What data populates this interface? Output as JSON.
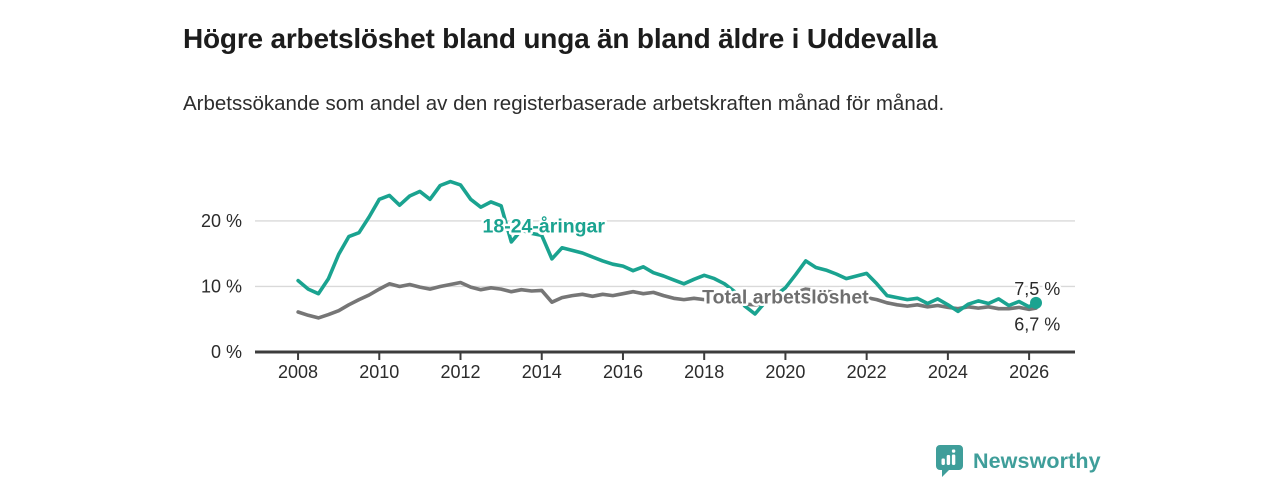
{
  "footer": {
    "brand": "Newsworthy",
    "logo_icon": "bar-chart-speech-bubble-icon"
  },
  "colors": {
    "young": "#1aa390",
    "total": "#767676",
    "total_label": "#6f6f6f",
    "text": "#2a2a2a",
    "tick_text": "#2b2b2b",
    "grid": "#d9d9d9",
    "axis": "#3c3c3c",
    "brand": "#3f9e9a"
  },
  "chart_data": {
    "type": "line",
    "title": "Högre arbetslöshet bland unga än bland äldre i Uddevalla",
    "subtitle": "Arbetssökande som andel av den registerbaserade arbetskraften månad för månad.",
    "xlabel": "",
    "ylabel": "",
    "xlim": [
      2006.94,
      2027.13
    ],
    "ylim": [
      0,
      29.6
    ],
    "grid": "horizontal-only",
    "legend_position": "inline-labels",
    "x_ticks": [
      2008,
      2010,
      2012,
      2014,
      2016,
      2018,
      2020,
      2022,
      2024,
      2026
    ],
    "y_ticks": [
      {
        "value": 0,
        "label": "0 %"
      },
      {
        "value": 10,
        "label": "10 %"
      },
      {
        "value": 20,
        "label": "20 %"
      }
    ],
    "series": [
      {
        "name": "Total arbetslöshet",
        "slug": "total-arbetsloshet",
        "color_key": "total",
        "line_width": 3.6,
        "end_dot": false,
        "end_value_label": "6,7 %",
        "points": [
          [
            2008.0,
            6.1
          ],
          [
            2008.25,
            5.6
          ],
          [
            2008.5,
            5.2
          ],
          [
            2008.75,
            5.7
          ],
          [
            2009.0,
            6.3
          ],
          [
            2009.25,
            7.2
          ],
          [
            2009.5,
            8.0
          ],
          [
            2009.75,
            8.7
          ],
          [
            2010.0,
            9.6
          ],
          [
            2010.25,
            10.4
          ],
          [
            2010.5,
            10.0
          ],
          [
            2010.75,
            10.3
          ],
          [
            2011.0,
            9.9
          ],
          [
            2011.25,
            9.6
          ],
          [
            2011.5,
            10.0
          ],
          [
            2011.75,
            10.3
          ],
          [
            2012.0,
            10.6
          ],
          [
            2012.25,
            9.9
          ],
          [
            2012.5,
            9.5
          ],
          [
            2012.75,
            9.8
          ],
          [
            2013.0,
            9.6
          ],
          [
            2013.25,
            9.2
          ],
          [
            2013.5,
            9.5
          ],
          [
            2013.75,
            9.3
          ],
          [
            2014.0,
            9.4
          ],
          [
            2014.25,
            7.6
          ],
          [
            2014.5,
            8.3
          ],
          [
            2014.75,
            8.6
          ],
          [
            2015.0,
            8.8
          ],
          [
            2015.25,
            8.5
          ],
          [
            2015.5,
            8.8
          ],
          [
            2015.75,
            8.6
          ],
          [
            2016.0,
            8.9
          ],
          [
            2016.25,
            9.2
          ],
          [
            2016.5,
            8.9
          ],
          [
            2016.75,
            9.1
          ],
          [
            2017.0,
            8.6
          ],
          [
            2017.25,
            8.2
          ],
          [
            2017.5,
            8.0
          ],
          [
            2017.75,
            8.2
          ],
          [
            2018.0,
            8.0
          ],
          [
            2018.25,
            7.8
          ],
          [
            2018.5,
            7.6
          ],
          [
            2018.75,
            7.5
          ],
          [
            2019.0,
            7.3
          ],
          [
            2019.25,
            7.2
          ],
          [
            2019.5,
            7.4
          ],
          [
            2019.75,
            7.7
          ],
          [
            2020.0,
            8.1
          ],
          [
            2020.25,
            9.1
          ],
          [
            2020.5,
            9.6
          ],
          [
            2020.75,
            9.4
          ],
          [
            2021.0,
            9.3
          ],
          [
            2021.25,
            9.0
          ],
          [
            2021.5,
            8.7
          ],
          [
            2021.75,
            8.5
          ],
          [
            2022.0,
            8.3
          ],
          [
            2022.25,
            8.0
          ],
          [
            2022.5,
            7.5
          ],
          [
            2022.75,
            7.2
          ],
          [
            2023.0,
            7.0
          ],
          [
            2023.25,
            7.2
          ],
          [
            2023.5,
            6.9
          ],
          [
            2023.75,
            7.1
          ],
          [
            2024.0,
            6.8
          ],
          [
            2024.25,
            6.6
          ],
          [
            2024.5,
            6.9
          ],
          [
            2024.75,
            6.7
          ],
          [
            2025.0,
            6.9
          ],
          [
            2025.25,
            6.6
          ],
          [
            2025.5,
            6.6
          ],
          [
            2025.75,
            6.8
          ],
          [
            2026.0,
            6.5
          ],
          [
            2026.17,
            6.7
          ]
        ]
      },
      {
        "name": "18-24-åringar",
        "slug": "18-24-aringar",
        "color_key": "young",
        "line_width": 3.6,
        "end_dot": true,
        "end_value_label": "7,5 %",
        "points": [
          [
            2008.0,
            10.9
          ],
          [
            2008.25,
            9.6
          ],
          [
            2008.5,
            8.9
          ],
          [
            2008.75,
            11.2
          ],
          [
            2009.0,
            14.9
          ],
          [
            2009.25,
            17.6
          ],
          [
            2009.5,
            18.2
          ],
          [
            2009.75,
            20.6
          ],
          [
            2010.0,
            23.3
          ],
          [
            2010.25,
            23.9
          ],
          [
            2010.5,
            22.4
          ],
          [
            2010.75,
            23.8
          ],
          [
            2011.0,
            24.5
          ],
          [
            2011.25,
            23.3
          ],
          [
            2011.5,
            25.4
          ],
          [
            2011.75,
            26.0
          ],
          [
            2012.0,
            25.5
          ],
          [
            2012.25,
            23.3
          ],
          [
            2012.5,
            22.1
          ],
          [
            2012.75,
            22.9
          ],
          [
            2013.0,
            22.3
          ],
          [
            2013.25,
            16.8
          ],
          [
            2013.5,
            18.6
          ],
          [
            2013.75,
            18.1
          ],
          [
            2014.0,
            17.8
          ],
          [
            2014.25,
            14.2
          ],
          [
            2014.5,
            15.9
          ],
          [
            2014.75,
            15.5
          ],
          [
            2015.0,
            15.1
          ],
          [
            2015.25,
            14.5
          ],
          [
            2015.5,
            13.9
          ],
          [
            2015.75,
            13.4
          ],
          [
            2016.0,
            13.1
          ],
          [
            2016.25,
            12.4
          ],
          [
            2016.5,
            13.0
          ],
          [
            2016.75,
            12.1
          ],
          [
            2017.0,
            11.6
          ],
          [
            2017.25,
            11.0
          ],
          [
            2017.5,
            10.4
          ],
          [
            2017.75,
            11.1
          ],
          [
            2018.0,
            11.7
          ],
          [
            2018.25,
            11.2
          ],
          [
            2018.5,
            10.4
          ],
          [
            2018.75,
            9.2
          ],
          [
            2019.0,
            7.0
          ],
          [
            2019.25,
            5.8
          ],
          [
            2019.5,
            7.6
          ],
          [
            2019.75,
            8.6
          ],
          [
            2020.0,
            9.8
          ],
          [
            2020.25,
            11.8
          ],
          [
            2020.5,
            13.9
          ],
          [
            2020.75,
            12.9
          ],
          [
            2021.0,
            12.5
          ],
          [
            2021.25,
            11.9
          ],
          [
            2021.5,
            11.2
          ],
          [
            2021.75,
            11.6
          ],
          [
            2022.0,
            12.0
          ],
          [
            2022.25,
            10.4
          ],
          [
            2022.5,
            8.6
          ],
          [
            2022.75,
            8.3
          ],
          [
            2023.0,
            8.0
          ],
          [
            2023.25,
            8.2
          ],
          [
            2023.5,
            7.4
          ],
          [
            2023.75,
            8.1
          ],
          [
            2024.0,
            7.2
          ],
          [
            2024.25,
            6.2
          ],
          [
            2024.5,
            7.3
          ],
          [
            2024.75,
            7.8
          ],
          [
            2025.0,
            7.4
          ],
          [
            2025.25,
            8.1
          ],
          [
            2025.5,
            7.1
          ],
          [
            2025.75,
            7.7
          ],
          [
            2026.0,
            6.9
          ],
          [
            2026.17,
            7.5
          ]
        ]
      }
    ],
    "annotations": [
      {
        "slug": "young-series-label",
        "text": "18-24-åringar",
        "x": 2014.05,
        "y": 19.2,
        "color_key": "young",
        "weight": "700",
        "size": 19.5,
        "anchor": "middle",
        "halo": true
      },
      {
        "slug": "total-series-label",
        "text": "Total arbetslöshet",
        "x": 2020.0,
        "y": 8.4,
        "color_key": "total_label",
        "weight": "700",
        "size": 19.5,
        "anchor": "middle",
        "halo": true
      },
      {
        "slug": "young-end-value-label",
        "text": "7,5 %",
        "x": 2026.2,
        "y": 9.7,
        "color_key": "text",
        "weight": "400",
        "size": 18,
        "anchor": "middle",
        "halo": true
      },
      {
        "slug": "total-end-value-label",
        "text": "6,7 %",
        "x": 2026.2,
        "y": 4.3,
        "color_key": "text",
        "weight": "400",
        "size": 18,
        "anchor": "middle",
        "halo": true
      }
    ]
  }
}
